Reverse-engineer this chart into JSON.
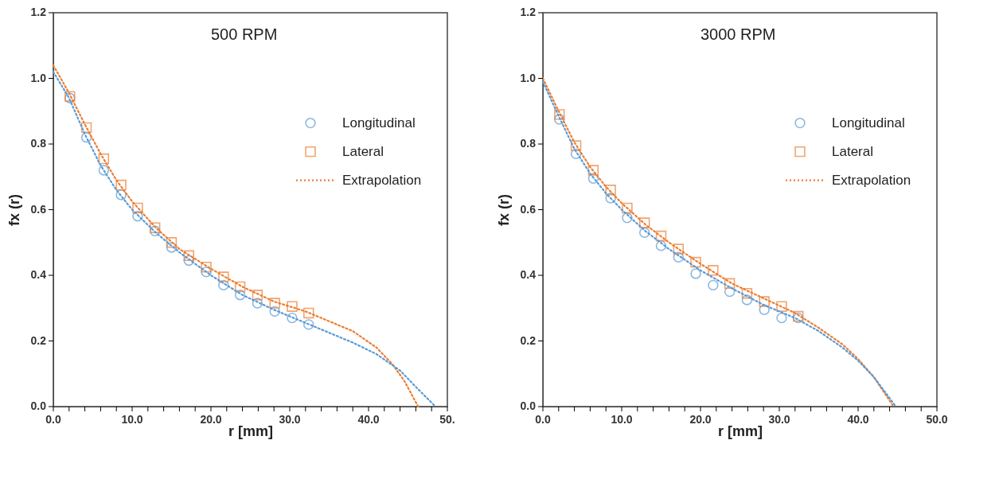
{
  "chart_data": [
    {
      "type": "scatter",
      "title": "500 RPM",
      "xlabel": "r [mm]",
      "ylabel": "fx (r)",
      "legend": "right",
      "grid": false,
      "xlim": [
        0,
        50
      ],
      "ylim": [
        0,
        1.2
      ],
      "xticks": [
        {
          "value": 0,
          "label": "0.0"
        },
        {
          "value": 2,
          "label": null
        },
        {
          "value": 4,
          "label": null
        },
        {
          "value": 6,
          "label": null
        },
        {
          "value": 8,
          "label": null
        },
        {
          "value": 10,
          "label": "10.0"
        },
        {
          "value": 12,
          "label": null
        },
        {
          "value": 14,
          "label": null
        },
        {
          "value": 16,
          "label": null
        },
        {
          "value": 18,
          "label": null
        },
        {
          "value": 20,
          "label": "20.0"
        },
        {
          "value": 22,
          "label": null
        },
        {
          "value": 24,
          "label": null
        },
        {
          "value": 26,
          "label": null
        },
        {
          "value": 28,
          "label": null
        },
        {
          "value": 30,
          "label": "30.0"
        },
        {
          "value": 32,
          "label": null
        },
        {
          "value": 34,
          "label": null
        },
        {
          "value": 36,
          "label": null
        },
        {
          "value": 38,
          "label": null
        },
        {
          "value": 40,
          "label": "40.0"
        },
        {
          "value": 42,
          "label": null
        },
        {
          "value": 44,
          "label": null
        },
        {
          "value": 46,
          "label": null
        },
        {
          "value": 48,
          "label": null
        },
        {
          "value": 50,
          "label": "50."
        }
      ],
      "yticks": [
        {
          "value": 0,
          "label": "0.0"
        },
        {
          "value": 0.2,
          "label": "0.2"
        },
        {
          "value": 0.4,
          "label": "0.4"
        },
        {
          "value": 0.6,
          "label": "0.6"
        },
        {
          "value": 0.8,
          "label": "0.8"
        },
        {
          "value": 1.0,
          "label": "1.0"
        },
        {
          "value": 1.2,
          "label": "1.2"
        }
      ],
      "series": [
        {
          "name": "Longitudinal",
          "marker": "circle",
          "color": "#5b9bd5",
          "x": [
            2.1,
            4.2,
            6.4,
            8.6,
            10.7,
            12.9,
            15.0,
            17.2,
            19.4,
            21.6,
            23.7,
            25.9,
            28.1,
            30.3,
            32.4
          ],
          "values": [
            0.94,
            0.82,
            0.72,
            0.645,
            0.58,
            0.535,
            0.485,
            0.445,
            0.41,
            0.37,
            0.34,
            0.315,
            0.29,
            0.27,
            0.25
          ]
        },
        {
          "name": "Lateral",
          "marker": "square",
          "color": "#ed7d31",
          "x": [
            2.1,
            4.2,
            6.4,
            8.6,
            10.7,
            12.9,
            15.0,
            17.2,
            19.4,
            21.6,
            23.7,
            25.9,
            28.1,
            30.3,
            32.4
          ],
          "values": [
            0.945,
            0.85,
            0.755,
            0.675,
            0.605,
            0.545,
            0.5,
            0.46,
            0.425,
            0.395,
            0.365,
            0.34,
            0.315,
            0.305,
            0.285
          ]
        },
        {
          "name": "Extrapolation",
          "type": "line",
          "line_style": "dotted",
          "color": "#ed7d31",
          "x": [
            0,
            2,
            4,
            6,
            8,
            10,
            13,
            16,
            20,
            24,
            28,
            32,
            35,
            38,
            41,
            43,
            44.5,
            46.3
          ],
          "values": [
            1.04,
            0.955,
            0.86,
            0.77,
            0.69,
            0.625,
            0.545,
            0.48,
            0.42,
            0.365,
            0.32,
            0.29,
            0.26,
            0.23,
            0.18,
            0.13,
            0.08,
            0
          ]
        },
        {
          "type": "line",
          "line_style": "dotted",
          "color": "#5b9bd5",
          "x": [
            0,
            2,
            4,
            6,
            8,
            10,
            13,
            16,
            20,
            24,
            28,
            32,
            35,
            38,
            41,
            44,
            46,
            48.5
          ],
          "values": [
            1.02,
            0.94,
            0.83,
            0.735,
            0.66,
            0.6,
            0.53,
            0.47,
            0.4,
            0.34,
            0.295,
            0.255,
            0.225,
            0.195,
            0.16,
            0.11,
            0.06,
            0
          ]
        }
      ]
    },
    {
      "type": "scatter",
      "title": "3000 RPM",
      "xlabel": "r [mm]",
      "ylabel": "fx (r)",
      "legend": "right",
      "grid": false,
      "xlim": [
        0,
        50
      ],
      "ylim": [
        0,
        1.2
      ],
      "xticks": [
        {
          "value": 0,
          "label": "0.0"
        },
        {
          "value": 2,
          "label": null
        },
        {
          "value": 4,
          "label": null
        },
        {
          "value": 6,
          "label": null
        },
        {
          "value": 8,
          "label": null
        },
        {
          "value": 10,
          "label": "10.0"
        },
        {
          "value": 12,
          "label": null
        },
        {
          "value": 14,
          "label": null
        },
        {
          "value": 16,
          "label": null
        },
        {
          "value": 18,
          "label": null
        },
        {
          "value": 20,
          "label": "20.0"
        },
        {
          "value": 22,
          "label": null
        },
        {
          "value": 24,
          "label": null
        },
        {
          "value": 26,
          "label": null
        },
        {
          "value": 28,
          "label": null
        },
        {
          "value": 30,
          "label": "30.0"
        },
        {
          "value": 32,
          "label": null
        },
        {
          "value": 34,
          "label": null
        },
        {
          "value": 36,
          "label": null
        },
        {
          "value": 38,
          "label": null
        },
        {
          "value": 40,
          "label": "40.0"
        },
        {
          "value": 42,
          "label": null
        },
        {
          "value": 44,
          "label": null
        },
        {
          "value": 46,
          "label": null
        },
        {
          "value": 48,
          "label": null
        },
        {
          "value": 50,
          "label": "50.0"
        }
      ],
      "yticks": [
        {
          "value": 0,
          "label": "0.0"
        },
        {
          "value": 0.2,
          "label": "0.2"
        },
        {
          "value": 0.4,
          "label": "0.4"
        },
        {
          "value": 0.6,
          "label": "0.6"
        },
        {
          "value": 0.8,
          "label": "0.8"
        },
        {
          "value": 1.0,
          "label": "1.0"
        },
        {
          "value": 1.2,
          "label": "1.2"
        }
      ],
      "series": [
        {
          "name": "Longitudinal",
          "marker": "circle",
          "color": "#5b9bd5",
          "x": [
            2.1,
            4.2,
            6.4,
            8.6,
            10.7,
            12.9,
            15.0,
            17.2,
            19.4,
            21.6,
            23.7,
            25.9,
            28.1,
            30.3,
            32.4
          ],
          "values": [
            0.875,
            0.77,
            0.695,
            0.635,
            0.575,
            0.53,
            0.49,
            0.455,
            0.405,
            0.37,
            0.35,
            0.325,
            0.295,
            0.27,
            0.27
          ]
        },
        {
          "name": "Lateral",
          "marker": "square",
          "color": "#ed7d31",
          "x": [
            2.1,
            4.2,
            6.4,
            8.6,
            10.7,
            12.9,
            15.0,
            17.2,
            19.4,
            21.6,
            23.7,
            25.9,
            28.1,
            30.3,
            32.4
          ],
          "values": [
            0.89,
            0.795,
            0.72,
            0.66,
            0.605,
            0.56,
            0.52,
            0.48,
            0.44,
            0.415,
            0.375,
            0.345,
            0.32,
            0.305,
            0.275
          ]
        },
        {
          "name": "Extrapolation",
          "type": "line",
          "line_style": "dotted",
          "color": "#ed7d31",
          "x": [
            0,
            2,
            4,
            6,
            8,
            10,
            13,
            16,
            20,
            24,
            28,
            32,
            35,
            38,
            40,
            42,
            44.5
          ],
          "values": [
            1.0,
            0.9,
            0.805,
            0.73,
            0.67,
            0.62,
            0.555,
            0.5,
            0.435,
            0.375,
            0.33,
            0.285,
            0.24,
            0.19,
            0.145,
            0.09,
            0
          ]
        },
        {
          "type": "line",
          "line_style": "dotted",
          "color": "#5b9bd5",
          "x": [
            0,
            2,
            4,
            6,
            8,
            10,
            13,
            16,
            20,
            24,
            28,
            32,
            35,
            38,
            40,
            42,
            44.8
          ],
          "values": [
            0.99,
            0.885,
            0.785,
            0.71,
            0.65,
            0.6,
            0.535,
            0.48,
            0.415,
            0.36,
            0.31,
            0.27,
            0.23,
            0.18,
            0.14,
            0.09,
            0
          ]
        }
      ]
    }
  ]
}
